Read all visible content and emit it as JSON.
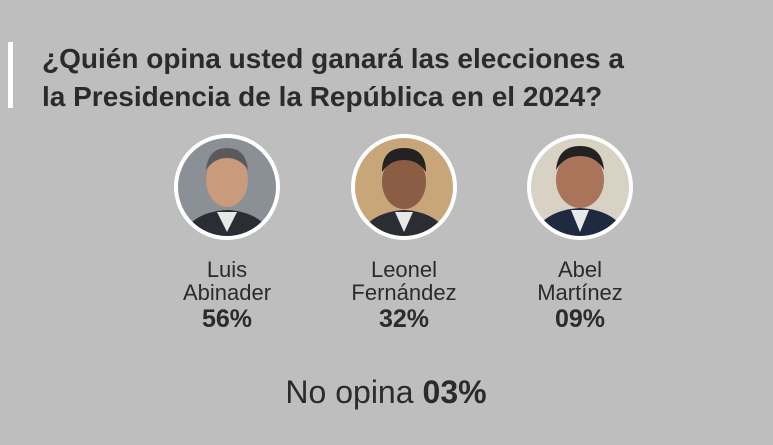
{
  "title": {
    "lines": [
      "¿Quién opina usted ganará las elecciones a",
      "la Presidencia de la República en el 2024?"
    ]
  },
  "candidates": [
    {
      "name_lines": [
        "Luis",
        "Abinader"
      ],
      "percent": "56%"
    },
    {
      "name_lines": [
        "Leonel",
        "Fernández"
      ],
      "percent": "32%"
    },
    {
      "name_lines": [
        "Abel",
        "Martínez"
      ],
      "percent": "09%"
    }
  ],
  "no_opina": {
    "label": "No opina",
    "percent": "03%"
  }
}
